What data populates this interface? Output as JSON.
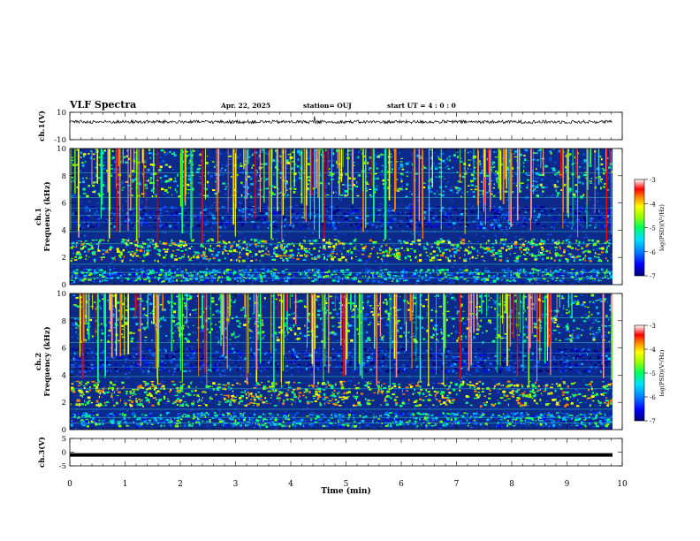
{
  "header": {
    "title": "VLF Spectra",
    "date": "Apr. 22, 2025",
    "station": "station= OUJ",
    "start": "start  UT =   4 : 0  : 0"
  },
  "colors": {
    "spec_background": "#0b2a8c",
    "waveform": "#000000",
    "colormap": [
      "#00007a",
      "#0000ff",
      "#0060ff",
      "#00c0ff",
      "#00ff80",
      "#80ff00",
      "#ffff00",
      "#ff8000",
      "#ff0000",
      "#ff9090",
      "#ffffff"
    ]
  },
  "chart_data": [
    {
      "type": "line",
      "name": "ch1-waveform",
      "ylabel": "ch.1(V)",
      "ylim": [
        -10,
        10
      ],
      "yticks": [
        "10",
        "-10"
      ],
      "xlim": [
        0,
        10
      ],
      "baseline": 0,
      "description_values": "noise around 0 V with occasional spikes"
    },
    {
      "type": "heatmap",
      "name": "ch1-spectrogram",
      "ylabel": "ch.1\nFrequency (kHz)",
      "ylabel_line1": "ch.1",
      "ylabel_line2": "Frequency (kHz)",
      "ylim": [
        0,
        10
      ],
      "yticks": [
        "0",
        "2",
        "4",
        "6",
        "8",
        "10"
      ],
      "xlim": [
        0,
        10
      ],
      "colorbar": {
        "label": "log(PSD)(V²/Hz)",
        "range": [
          -7,
          -3
        ],
        "ticks": [
          "-3",
          "-4",
          "-5",
          "-6",
          "-7"
        ]
      },
      "bands": [
        {
          "from": 0.3,
          "to": 1.2,
          "level": -5.8
        },
        {
          "from": 1.8,
          "to": 3.4,
          "level": -5.0
        },
        {
          "from": 4.2,
          "to": 5.8,
          "level": -6.6
        },
        {
          "from": 6.5,
          "to": 10,
          "level": -5.4
        }
      ]
    },
    {
      "type": "heatmap",
      "name": "ch2-spectrogram",
      "ylabel_line1": "ch.2",
      "ylabel_line2": "Frequency (kHz)",
      "ylim": [
        0,
        10
      ],
      "yticks": [
        "0",
        "2",
        "4",
        "6",
        "8",
        "10"
      ],
      "xlim": [
        0,
        10
      ],
      "colorbar": {
        "label": "log(PSD)(V²/Hz)",
        "range": [
          -7,
          -3
        ],
        "ticks": [
          "-3",
          "-4",
          "-5",
          "-6",
          "-7"
        ]
      },
      "bands": [
        {
          "from": 0.3,
          "to": 1.3,
          "level": -5.8
        },
        {
          "from": 1.8,
          "to": 3.6,
          "level": -4.8
        },
        {
          "from": 4.3,
          "to": 6.0,
          "level": -6.6
        },
        {
          "from": 6.5,
          "to": 10,
          "level": -5.4
        }
      ]
    },
    {
      "type": "line",
      "name": "ch3-waveform",
      "ylabel": "ch.3(V)",
      "ylim": [
        -5,
        5
      ],
      "yticks": [
        "5",
        "0",
        "-5"
      ],
      "xlim": [
        0,
        10
      ],
      "values_constant": -1
    }
  ],
  "xaxis": {
    "label": "Time  (min)",
    "ticks": [
      "0",
      "1",
      "2",
      "3",
      "4",
      "5",
      "6",
      "7",
      "8",
      "9",
      "10"
    ]
  }
}
